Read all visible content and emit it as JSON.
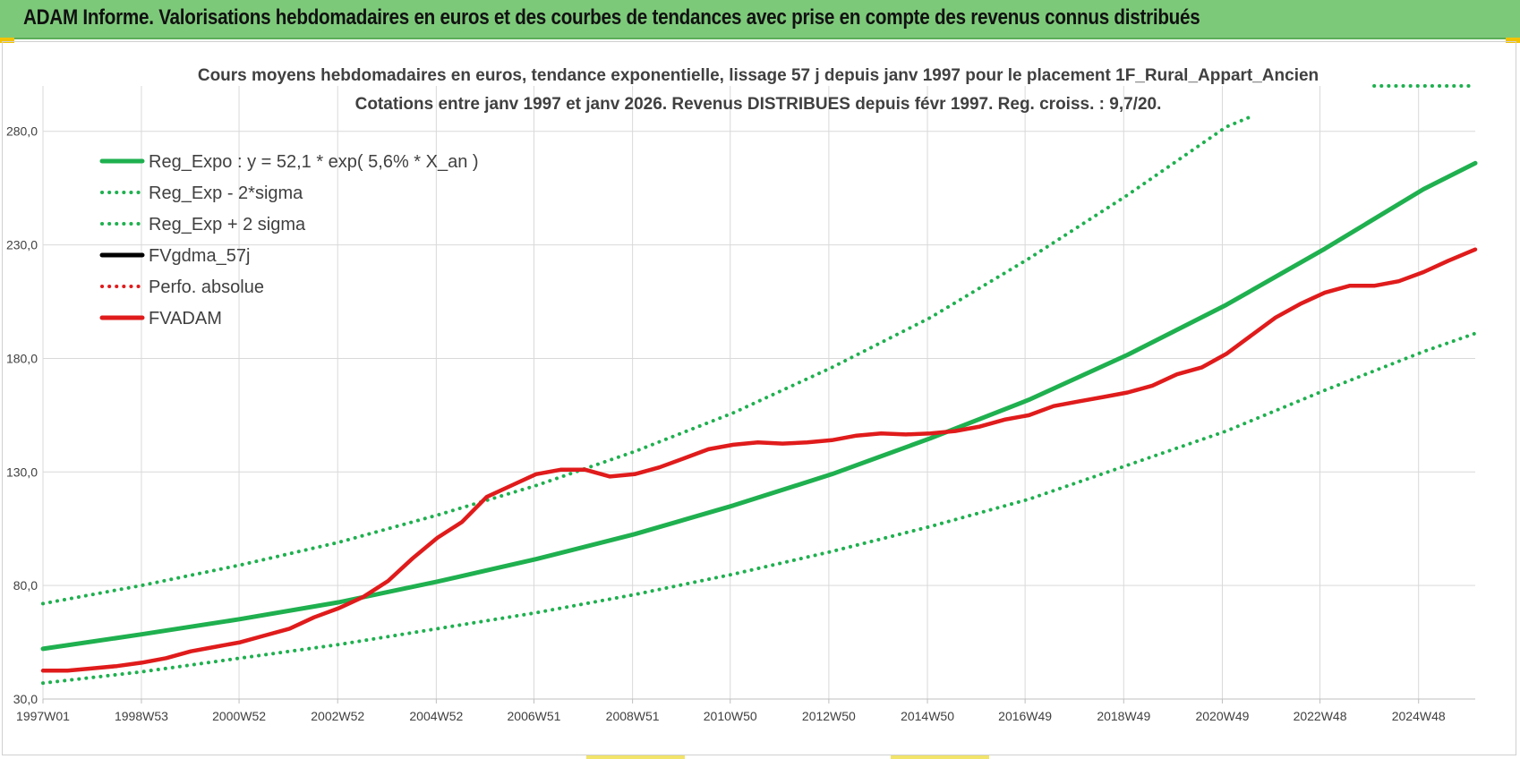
{
  "header": {
    "title": "ADAM Informe. Valorisations hebdomadaires en euros et des courbes de tendances avec prise en compte des revenus connus distribués"
  },
  "chart_data": {
    "type": "line",
    "title_line1": "Cours moyens hebdomadaires en euros, tendance exponentielle, lissage 57 j depuis janv 1997  pour le placement 1F_Rural_Appart_Ancien",
    "title_line2": "Cotations entre janv 1997 et janv 2026. Revenus DISTRIBUES depuis févr 1997. Reg. croiss. : 9,7/20.",
    "xlabel": "",
    "ylabel": "",
    "x_ticks": [
      "1997W01",
      "1998W53",
      "2000W52",
      "2002W52",
      "2004W52",
      "2006W51",
      "2008W51",
      "2010W50",
      "2012W50",
      "2014W50",
      "2016W49",
      "2018W49",
      "2020W49",
      "2022W48",
      "2024W48"
    ],
    "x_range": [
      1997.0,
      2026.05
    ],
    "y_ticks": [
      "30,0",
      "80,0",
      "130,0",
      "180,0",
      "230,0",
      "280,0"
    ],
    "ylim": [
      30,
      300
    ],
    "grid": true,
    "legend_position": "top-left",
    "legend": [
      {
        "label": "Reg_Expo : y = 52,1 * exp( 5,6% *  X_an )",
        "color": "#1fb04f",
        "style": "solid"
      },
      {
        "label": "Reg_Exp - 2*sigma",
        "color": "#1fb04f",
        "style": "dotted"
      },
      {
        "label": "Reg_Exp + 2 sigma",
        "color": "#1fb04f",
        "style": "dotted"
      },
      {
        "label": "FVgdma_57j",
        "color": "#000000",
        "style": "solid"
      },
      {
        "label": "Perfo. absolue",
        "color": "#e01b1b",
        "style": "dotted"
      },
      {
        "label": "FVADAM",
        "color": "#e01b1b",
        "style": "solid"
      }
    ],
    "series": [
      {
        "name": "Reg_Expo : y = 52,1 * exp( 5,6% *  X_an )",
        "color": "#1fb04f",
        "x": [
          1997.0,
          1999.0,
          2001.0,
          2003.0,
          2005.0,
          2007.0,
          2009.0,
          2011.0,
          2013.0,
          2015.0,
          2017.0,
          2019.0,
          2021.0,
          2023.0,
          2025.0,
          2026.05
        ],
        "values": [
          52.1,
          58.5,
          65.2,
          72.6,
          81.7,
          91.6,
          102.6,
          115.2,
          129.0,
          144.8,
          161.8,
          181.6,
          203.6,
          228.3,
          254.5,
          266.0
        ]
      },
      {
        "name": "Reg_Exp - 2*sigma",
        "color": "#1fb04f",
        "x": [
          1997.0,
          1999.0,
          2001.0,
          2003.0,
          2005.0,
          2007.0,
          2009.0,
          2011.0,
          2013.0,
          2015.0,
          2017.0,
          2019.0,
          2021.0,
          2023.0,
          2025.0,
          2026.05
        ],
        "values": [
          37.0,
          42.0,
          48.0,
          54.0,
          61.0,
          68.0,
          76.0,
          85.0,
          95.0,
          106.0,
          118.0,
          133.0,
          148.0,
          166.0,
          183.0,
          191.0
        ]
      },
      {
        "name": "Reg_Exp + 2 sigma",
        "color": "#1fb04f",
        "x": [
          1997.0,
          1999.0,
          2001.0,
          2003.0,
          2005.0,
          2007.0,
          2009.0,
          2011.0,
          2013.0,
          2015.0,
          2017.0,
          2019.0,
          2021.0,
          2021.45
        ],
        "values": [
          72.0,
          80.0,
          89.0,
          99.0,
          111.0,
          124.0,
          139.0,
          156.0,
          176.0,
          198.0,
          224.0,
          252.0,
          282.0,
          286.0
        ]
      },
      {
        "name": "Reg_Exp + 2 sigma",
        "color": "#1fb04f",
        "x": [
          2024.0,
          2026.05
        ],
        "values": [
          300.0,
          300.0
        ]
      },
      {
        "name": "FVADAM",
        "color": "#e01b1b",
        "x": [
          1997.0,
          1997.5,
          1998.0,
          1998.5,
          1999.0,
          1999.5,
          2000.0,
          2000.5,
          2001.0,
          2001.5,
          2002.0,
          2002.5,
          2003.0,
          2003.5,
          2004.0,
          2004.5,
          2005.0,
          2005.5,
          2006.0,
          2006.5,
          2007.0,
          2007.5,
          2008.0,
          2008.5,
          2009.0,
          2009.5,
          2010.0,
          2010.5,
          2011.0,
          2011.5,
          2012.0,
          2012.5,
          2013.0,
          2013.5,
          2014.0,
          2014.5,
          2015.0,
          2015.5,
          2016.0,
          2016.5,
          2017.0,
          2017.5,
          2018.0,
          2018.5,
          2019.0,
          2019.5,
          2020.0,
          2020.5,
          2021.0,
          2021.5,
          2022.0,
          2022.5,
          2023.0,
          2023.5,
          2024.0,
          2024.5,
          2025.0,
          2025.5,
          2026.05
        ],
        "values": [
          42.5,
          42.5,
          43.5,
          44.5,
          46.0,
          48.0,
          51.0,
          53.0,
          55.0,
          58.0,
          61.0,
          66.0,
          70.0,
          75.0,
          82.0,
          92.0,
          101.0,
          108.0,
          119.0,
          124.0,
          129.0,
          131.0,
          131.0,
          128.0,
          129.0,
          132.0,
          136.0,
          140.0,
          142.0,
          143.0,
          142.5,
          143.0,
          144.0,
          146.0,
          147.0,
          146.5,
          147.0,
          148.0,
          150.0,
          153.0,
          155.0,
          159.0,
          161.0,
          163.0,
          165.0,
          168.0,
          173.0,
          176.0,
          182.0,
          190.0,
          198.0,
          204.0,
          209.0,
          212.0,
          212.0,
          214.0,
          218.0,
          223.0,
          228.0
        ]
      }
    ]
  }
}
